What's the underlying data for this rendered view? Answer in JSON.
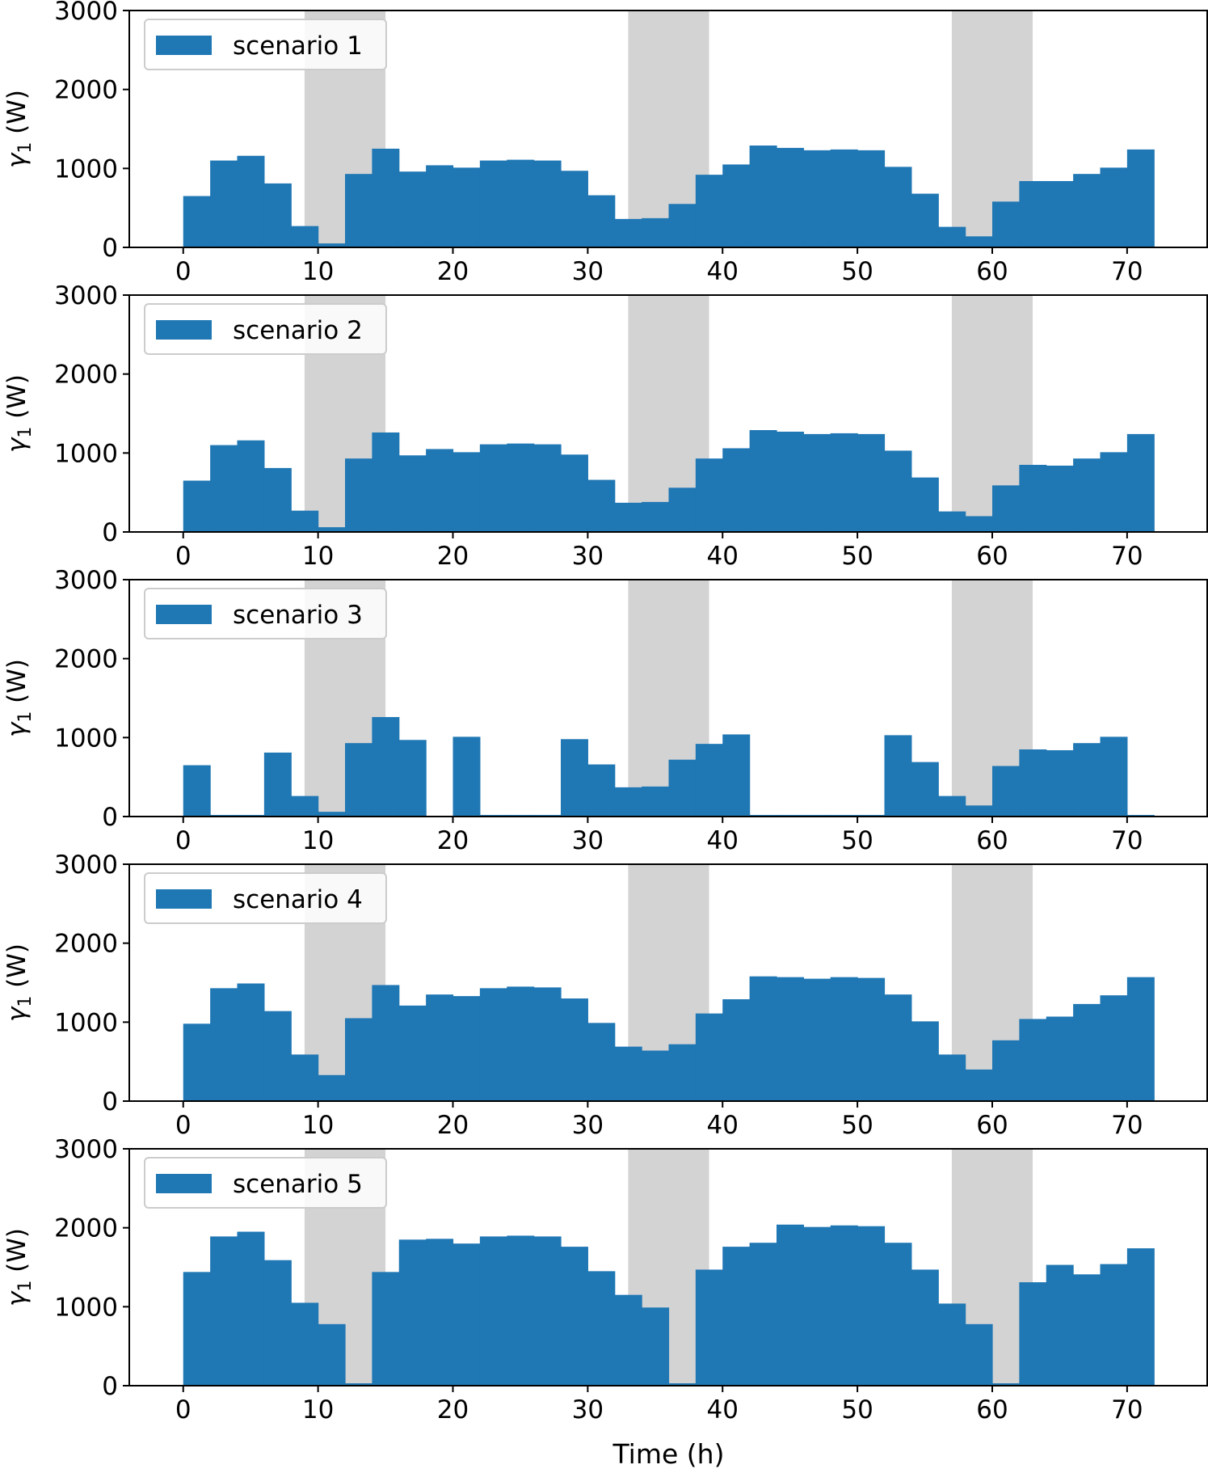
{
  "figure": {
    "xlabel": "Time (h)"
  },
  "colors": {
    "bar": "#1f77b4",
    "shade": "#d3d3d3",
    "axis": "#000000",
    "legend_border": "#cccccc"
  },
  "chart_data": [
    {
      "type": "bar",
      "legend": "scenario 1",
      "ylabel_var": "γ",
      "ylabel_sub": "1",
      "ylabel_unit": " (W)",
      "bin_width_h": 2,
      "xlim": [
        -4,
        76
      ],
      "ylim": [
        0,
        3000
      ],
      "xticks": [
        "0",
        "10",
        "20",
        "30",
        "40",
        "50",
        "60",
        "70"
      ],
      "yticks": [
        "0",
        "1000",
        "2000",
        "3000"
      ],
      "shaded_intervals_h": [
        [
          9,
          15
        ],
        [
          33,
          39
        ],
        [
          57,
          63
        ]
      ],
      "x": [
        0,
        2,
        4,
        6,
        8,
        10,
        12,
        14,
        16,
        18,
        20,
        22,
        24,
        26,
        28,
        30,
        32,
        34,
        36,
        38,
        40,
        42,
        44,
        46,
        48,
        50,
        52,
        54,
        56,
        58,
        60,
        62,
        64,
        66,
        68,
        70
      ],
      "values": [
        650,
        1100,
        1160,
        810,
        270,
        50,
        930,
        1250,
        960,
        1040,
        1010,
        1100,
        1110,
        1100,
        970,
        660,
        360,
        370,
        550,
        920,
        1050,
        1290,
        1260,
        1230,
        1240,
        1230,
        1020,
        680,
        260,
        140,
        580,
        840,
        840,
        930,
        1010,
        1240
      ]
    },
    {
      "type": "bar",
      "legend": "scenario 2",
      "ylabel_var": "γ",
      "ylabel_sub": "1",
      "ylabel_unit": " (W)",
      "bin_width_h": 2,
      "xlim": [
        -4,
        76
      ],
      "ylim": [
        0,
        3000
      ],
      "xticks": [
        "0",
        "10",
        "20",
        "30",
        "40",
        "50",
        "60",
        "70"
      ],
      "yticks": [
        "0",
        "1000",
        "2000",
        "3000"
      ],
      "shaded_intervals_h": [
        [
          9,
          15
        ],
        [
          33,
          39
        ],
        [
          57,
          63
        ]
      ],
      "x": [
        0,
        2,
        4,
        6,
        8,
        10,
        12,
        14,
        16,
        18,
        20,
        22,
        24,
        26,
        28,
        30,
        32,
        34,
        36,
        38,
        40,
        42,
        44,
        46,
        48,
        50,
        52,
        54,
        56,
        58,
        60,
        62,
        64,
        66,
        68,
        70
      ],
      "values": [
        650,
        1100,
        1160,
        810,
        270,
        60,
        930,
        1260,
        970,
        1050,
        1010,
        1110,
        1120,
        1110,
        980,
        660,
        370,
        380,
        560,
        930,
        1060,
        1290,
        1270,
        1240,
        1250,
        1240,
        1030,
        690,
        260,
        200,
        590,
        850,
        840,
        930,
        1010,
        1240
      ]
    },
    {
      "type": "bar",
      "legend": "scenario 3",
      "ylabel_var": "γ",
      "ylabel_sub": "1",
      "ylabel_unit": " (W)",
      "bin_width_h": 2,
      "xlim": [
        -4,
        76
      ],
      "ylim": [
        0,
        3000
      ],
      "xticks": [
        "0",
        "10",
        "20",
        "30",
        "40",
        "50",
        "60",
        "70"
      ],
      "yticks": [
        "0",
        "1000",
        "2000",
        "3000"
      ],
      "shaded_intervals_h": [
        [
          9,
          15
        ],
        [
          33,
          39
        ],
        [
          57,
          63
        ]
      ],
      "x": [
        0,
        2,
        4,
        6,
        8,
        10,
        12,
        14,
        16,
        18,
        20,
        22,
        24,
        26,
        28,
        30,
        32,
        34,
        36,
        38,
        40,
        42,
        44,
        46,
        48,
        50,
        52,
        54,
        56,
        58,
        60,
        62,
        64,
        66,
        68,
        70
      ],
      "values": [
        650,
        20,
        20,
        810,
        260,
        60,
        930,
        1260,
        970,
        0,
        1010,
        20,
        20,
        20,
        980,
        660,
        370,
        380,
        720,
        920,
        1040,
        20,
        20,
        20,
        20,
        20,
        1030,
        690,
        260,
        140,
        640,
        850,
        840,
        930,
        1010,
        20
      ]
    },
    {
      "type": "bar",
      "legend": "scenario 4",
      "ylabel_var": "γ",
      "ylabel_sub": "1",
      "ylabel_unit": " (W)",
      "bin_width_h": 2,
      "xlim": [
        -4,
        76
      ],
      "ylim": [
        0,
        3000
      ],
      "xticks": [
        "0",
        "10",
        "20",
        "30",
        "40",
        "50",
        "60",
        "70"
      ],
      "yticks": [
        "0",
        "1000",
        "2000",
        "3000"
      ],
      "shaded_intervals_h": [
        [
          9,
          15
        ],
        [
          33,
          39
        ],
        [
          57,
          63
        ]
      ],
      "x": [
        0,
        2,
        4,
        6,
        8,
        10,
        12,
        14,
        16,
        18,
        20,
        22,
        24,
        26,
        28,
        30,
        32,
        34,
        36,
        38,
        40,
        42,
        44,
        46,
        48,
        50,
        52,
        54,
        56,
        58,
        60,
        62,
        64,
        66,
        68,
        70
      ],
      "values": [
        980,
        1430,
        1490,
        1140,
        590,
        330,
        1050,
        1470,
        1210,
        1350,
        1330,
        1430,
        1450,
        1440,
        1300,
        990,
        690,
        640,
        720,
        1110,
        1290,
        1580,
        1570,
        1550,
        1570,
        1560,
        1350,
        1010,
        590,
        400,
        770,
        1040,
        1070,
        1230,
        1340,
        1570
      ]
    },
    {
      "type": "bar",
      "legend": "scenario 5",
      "ylabel_var": "γ",
      "ylabel_sub": "1",
      "ylabel_unit": " (W)",
      "bin_width_h": 2,
      "xlim": [
        -4,
        76
      ],
      "ylim": [
        0,
        3000
      ],
      "xticks": [
        "0",
        "10",
        "20",
        "30",
        "40",
        "50",
        "60",
        "70"
      ],
      "yticks": [
        "0",
        "1000",
        "2000",
        "3000"
      ],
      "shaded_intervals_h": [
        [
          9,
          15
        ],
        [
          33,
          39
        ],
        [
          57,
          63
        ]
      ],
      "x": [
        0,
        2,
        4,
        6,
        8,
        10,
        12,
        14,
        16,
        18,
        20,
        22,
        24,
        26,
        28,
        30,
        32,
        34,
        36,
        38,
        40,
        42,
        44,
        46,
        48,
        50,
        52,
        54,
        56,
        58,
        60,
        62,
        64,
        66,
        68,
        70
      ],
      "values": [
        1440,
        1890,
        1950,
        1590,
        1050,
        780,
        30,
        1440,
        1850,
        1860,
        1800,
        1890,
        1900,
        1890,
        1760,
        1450,
        1150,
        990,
        30,
        1470,
        1760,
        1810,
        2040,
        2010,
        2030,
        2020,
        1810,
        1470,
        1040,
        780,
        30,
        1310,
        1530,
        1410,
        1540,
        1740
      ]
    }
  ]
}
